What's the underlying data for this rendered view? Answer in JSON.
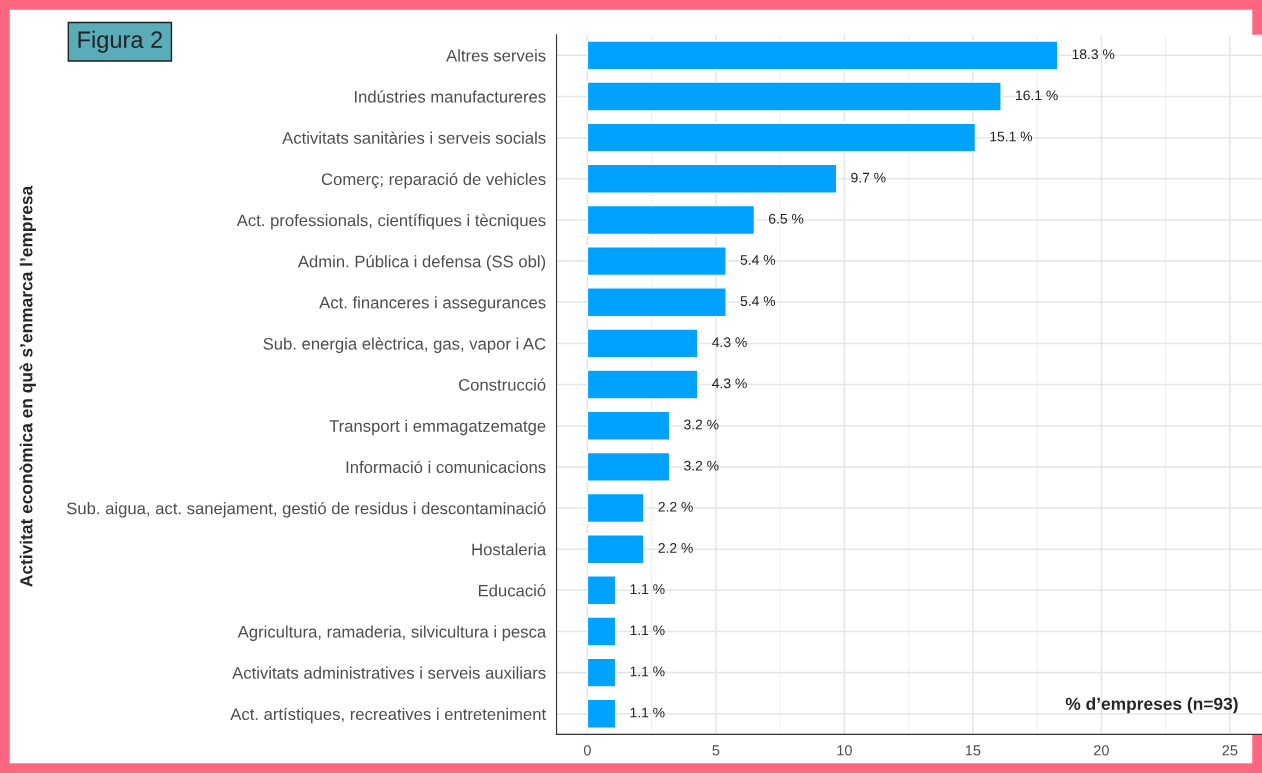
{
  "chart_data": {
    "type": "bar",
    "orientation": "horizontal",
    "title": "Figura 2",
    "ylabel": "Activitat econòmica en què s’enmarca l’empresa",
    "categories": [
      "Altres serveis",
      "Indústries manufactureres",
      "Activitats sanitàries i serveis socials",
      "Comerç; reparació de vehicles",
      "Act. professionals, científiques i tècniques",
      "Admin. Pública i defensa (SS obl)",
      "Act. financeres i assegurances",
      "Sub. energia elèctrica, gas, vapor i AC",
      "Construcció",
      "Transport i emmagatzematge",
      "Informació i comunicacions",
      "Sub. aigua, act. sanejament, gestió de residus i descontaminació",
      "Hostaleria",
      "Educació",
      "Agricultura, ramaderia, silvicultura i pesca",
      "Activitats administratives i serveis auxiliars",
      "Act. artístiques, recreatives i entreteniment"
    ],
    "values": [
      18.3,
      16.1,
      15.1,
      9.7,
      6.5,
      5.4,
      5.4,
      4.3,
      4.3,
      3.2,
      3.2,
      2.2,
      2.2,
      1.1,
      1.1,
      1.1,
      1.1
    ],
    "value_labels": [
      "18.3 %",
      "16.1 %",
      "15.1 %",
      "9.7 %",
      "6.5 %",
      "5.4 %",
      "5.4 %",
      "4.3 %",
      "4.3 %",
      "3.2 %",
      "3.2 %",
      "2.2 %",
      "2.2 %",
      "1.1 %",
      "1.1 %",
      "1.1 %",
      "1.1 %"
    ],
    "color": "#00a2ff",
    "xlim": [
      -1.2,
      26.3
    ],
    "xticks": [
      0,
      5,
      10,
      15,
      20,
      25
    ],
    "grid": true,
    "annotations": [
      "% d’empreses (n=93)"
    ]
  }
}
